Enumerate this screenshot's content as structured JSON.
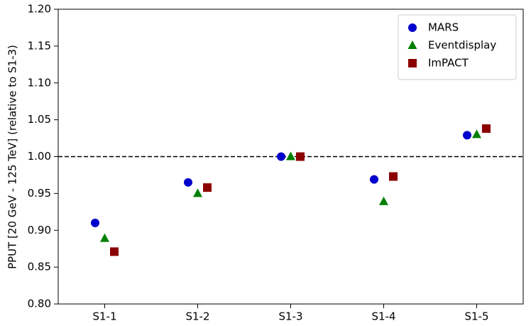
{
  "chart_data": {
    "type": "scatter",
    "y_label": "PPUT [20 GeV - 125 TeV] (relative to S1-3)",
    "categories": [
      "S1-1",
      "S1-2",
      "S1-3",
      "S1-4",
      "S1-5"
    ],
    "series": [
      {
        "name": "MARS",
        "color": "#0000cc",
        "marker": "circle",
        "values": [
          0.91,
          0.965,
          1.0,
          0.969,
          1.029
        ]
      },
      {
        "name": "Eventdisplay",
        "color": "#007f00",
        "marker": "triangle",
        "values": [
          0.889,
          0.95,
          1.0,
          0.939,
          1.03
        ]
      },
      {
        "name": "ImPACT",
        "color": "#8b0000",
        "marker": "square",
        "values": [
          0.871,
          0.958,
          1.0,
          0.973,
          1.038
        ]
      }
    ],
    "ylim": [
      0.8,
      1.2
    ],
    "yticks": [
      {
        "value": 0.8,
        "label": "0.80"
      },
      {
        "value": 0.85,
        "label": "0.85"
      },
      {
        "value": 0.9,
        "label": "0.90"
      },
      {
        "value": 0.95,
        "label": "0.95"
      },
      {
        "value": 1.0,
        "label": "1.00"
      },
      {
        "value": 1.05,
        "label": "1.05"
      },
      {
        "value": 1.1,
        "label": "1.10"
      },
      {
        "value": 1.15,
        "label": "1.15"
      },
      {
        "value": 1.2,
        "label": "1.20"
      }
    ],
    "hline": 1.0,
    "legend": "upper right"
  }
}
